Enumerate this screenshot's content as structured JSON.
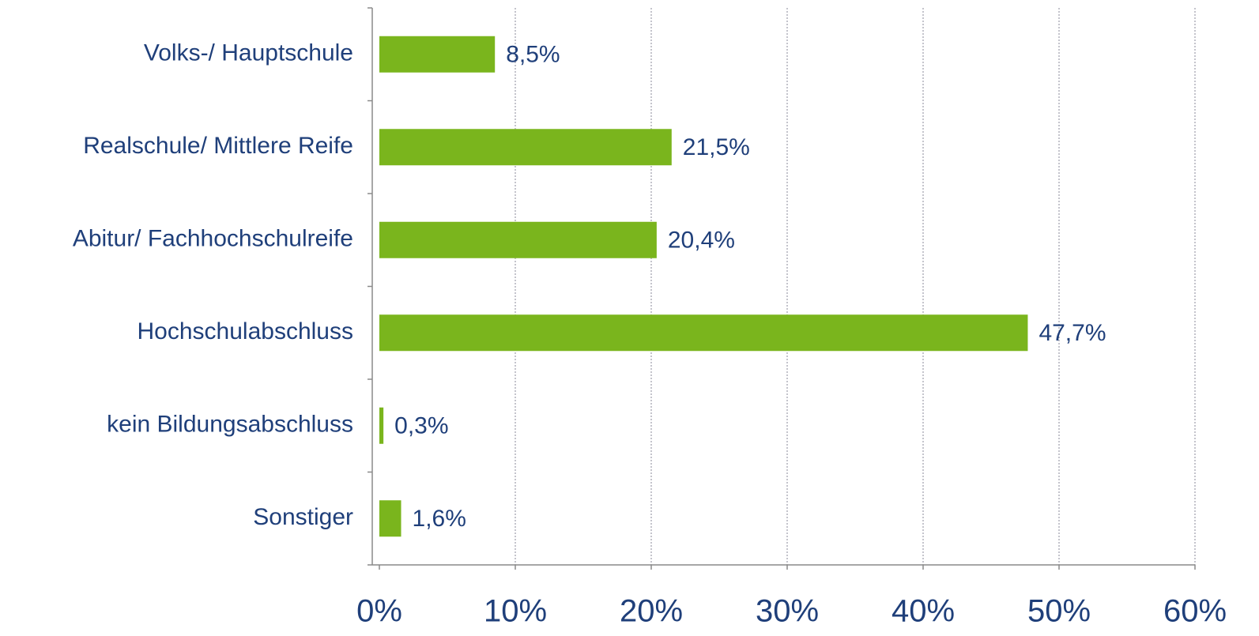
{
  "chart_data": {
    "type": "bar",
    "orientation": "horizontal",
    "categories": [
      "Volks-/ Hauptschule",
      "Realschule/ Mittlere Reife",
      "Abitur/ Fachhochschulreife",
      "Hochschulabschluss",
      "kein Bildungsabschluss",
      "Sonstiger"
    ],
    "values": [
      8.5,
      21.5,
      20.4,
      47.7,
      0.3,
      1.6
    ],
    "value_labels": [
      "8,5%",
      "21,5%",
      "20,4%",
      "47,7%",
      "0,3%",
      "1,6%"
    ],
    "color": "#7ab51d",
    "xlim": [
      0,
      60
    ],
    "xticks": [
      {
        "value": 0,
        "label": "0%"
      },
      {
        "value": 10,
        "label": "10%"
      },
      {
        "value": 20,
        "label": "20%"
      },
      {
        "value": 30,
        "label": "30%"
      },
      {
        "value": 40,
        "label": "40%"
      },
      {
        "value": 50,
        "label": "50%"
      },
      {
        "value": 60,
        "label": "60%"
      }
    ],
    "grid": true
  }
}
